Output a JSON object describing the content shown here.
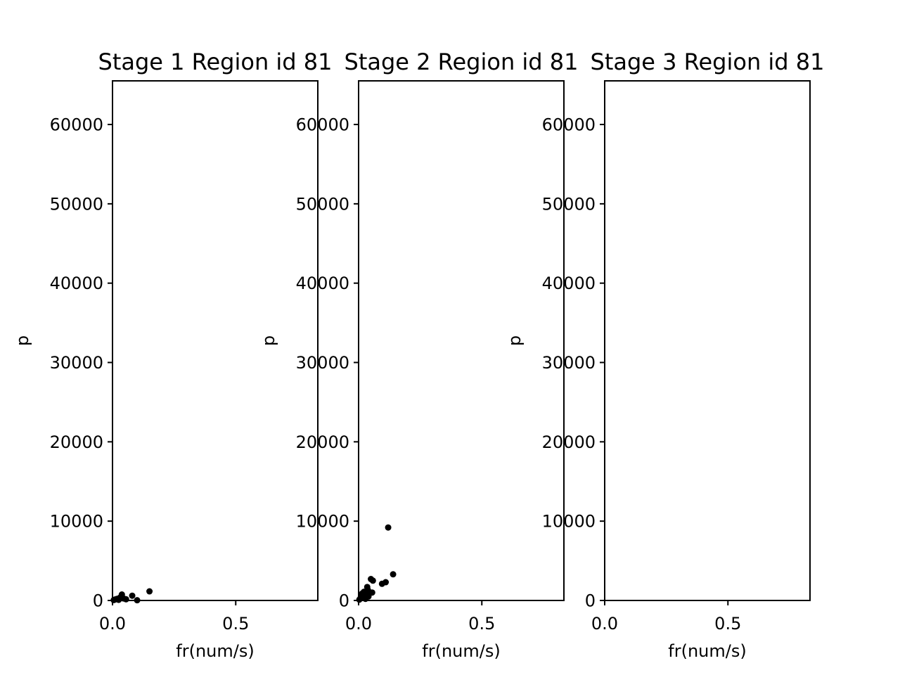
{
  "chart_data": [
    {
      "type": "scatter",
      "title": "Stage 1 Region id 81",
      "xlabel": "fr(num/s)",
      "ylabel": "p",
      "xlim": [
        0,
        0.833
      ],
      "ylim": [
        0,
        65500
      ],
      "xticks": [
        0.0,
        0.5
      ],
      "xtick_labels": [
        "0.0",
        "0.5"
      ],
      "yticks": [
        0,
        10000,
        20000,
        30000,
        40000,
        50000,
        60000
      ],
      "ytick_labels": [
        "0",
        "10000",
        "20000",
        "30000",
        "40000",
        "50000",
        "60000"
      ],
      "grid": false,
      "marker_color": "#000000",
      "points": [
        {
          "x": 0.005,
          "y": 50
        },
        {
          "x": 0.01,
          "y": 120
        },
        {
          "x": 0.018,
          "y": 200
        },
        {
          "x": 0.025,
          "y": 80
        },
        {
          "x": 0.03,
          "y": 350
        },
        {
          "x": 0.038,
          "y": 750
        },
        {
          "x": 0.045,
          "y": 250
        },
        {
          "x": 0.055,
          "y": 150
        },
        {
          "x": 0.08,
          "y": 600
        },
        {
          "x": 0.1,
          "y": 30
        },
        {
          "x": 0.15,
          "y": 1150
        }
      ]
    },
    {
      "type": "scatter",
      "title": "Stage 2 Region id 81",
      "xlabel": "fr(num/s)",
      "ylabel": "p",
      "xlim": [
        0,
        0.833
      ],
      "ylim": [
        0,
        65500
      ],
      "xticks": [
        0.0,
        0.5
      ],
      "xtick_labels": [
        "0.0",
        "0.5"
      ],
      "yticks": [
        0,
        10000,
        20000,
        30000,
        40000,
        50000,
        60000
      ],
      "ytick_labels": [
        "0",
        "10000",
        "20000",
        "30000",
        "40000",
        "50000",
        "60000"
      ],
      "grid": false,
      "marker_color": "#000000",
      "points": [
        {
          "x": 0.003,
          "y": 100
        },
        {
          "x": 0.008,
          "y": 300
        },
        {
          "x": 0.012,
          "y": 600
        },
        {
          "x": 0.015,
          "y": 900
        },
        {
          "x": 0.02,
          "y": 400
        },
        {
          "x": 0.022,
          "y": 1100
        },
        {
          "x": 0.028,
          "y": 200
        },
        {
          "x": 0.03,
          "y": 700
        },
        {
          "x": 0.035,
          "y": 1700
        },
        {
          "x": 0.038,
          "y": 1300
        },
        {
          "x": 0.04,
          "y": 500
        },
        {
          "x": 0.045,
          "y": 900
        },
        {
          "x": 0.05,
          "y": 2700
        },
        {
          "x": 0.055,
          "y": 1000
        },
        {
          "x": 0.058,
          "y": 2500
        },
        {
          "x": 0.095,
          "y": 2100
        },
        {
          "x": 0.11,
          "y": 2300
        },
        {
          "x": 0.12,
          "y": 9200
        },
        {
          "x": 0.14,
          "y": 3300
        }
      ]
    },
    {
      "type": "scatter",
      "title": "Stage 3 Region id 81",
      "xlabel": "fr(num/s)",
      "ylabel": "p",
      "xlim": [
        0,
        0.833
      ],
      "ylim": [
        0,
        65500
      ],
      "xticks": [
        0.0,
        0.5
      ],
      "xtick_labels": [
        "0.0",
        "0.5"
      ],
      "yticks": [
        0,
        10000,
        20000,
        30000,
        40000,
        50000,
        60000
      ],
      "ytick_labels": [
        "0",
        "10000",
        "20000",
        "30000",
        "40000",
        "50000",
        "60000"
      ],
      "grid": false,
      "marker_color": "#000000",
      "points": []
    }
  ]
}
